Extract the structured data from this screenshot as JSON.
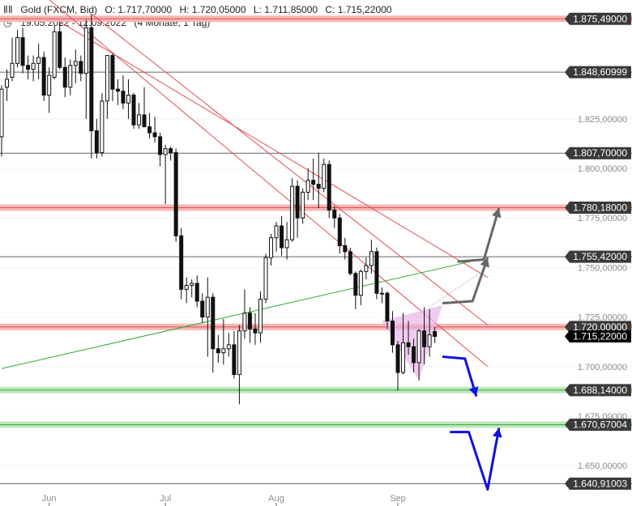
{
  "header": {
    "instrument": "Gold (FXCM, Bid)",
    "open": "O: 1.717,70000",
    "high": "H: 1.720,05000",
    "low": "L: 1.711,85000",
    "close": "C: 1.715,22000",
    "range": "19.05.2022 - 12.09.2022",
    "period": "(4 Monate, 1 Tag)"
  },
  "chart_data": {
    "type": "candlestick",
    "ylim": [
      1637,
      1885
    ],
    "y_ticks": [
      {
        "value": 1650,
        "label": "1.650,00000"
      },
      {
        "value": 1675,
        "label": "1.675,00000"
      },
      {
        "value": 1700,
        "label": "1.700,00000"
      },
      {
        "value": 1725,
        "label": "1.725,00000"
      },
      {
        "value": 1750,
        "label": "1.750,00000"
      },
      {
        "value": 1775,
        "label": "1.775,00000"
      },
      {
        "value": 1800,
        "label": "1.800,00000"
      },
      {
        "value": 1825,
        "label": "1.825,00000"
      }
    ],
    "x_labels": [
      {
        "date": "2022-06-01",
        "label": "Jun"
      },
      {
        "date": "2022-07-01",
        "label": "Jul"
      },
      {
        "date": "2022-08-01",
        "label": "Aug"
      },
      {
        "date": "2022-09-01",
        "label": "Sep"
      }
    ],
    "candles": [
      {
        "date": "2022-05-19",
        "o": 1816.0,
        "h": 1842.0,
        "l": 1806.0,
        "c": 1840.0
      },
      {
        "date": "2022-05-20",
        "o": 1841.0,
        "h": 1850.0,
        "l": 1834.0,
        "c": 1845.0
      },
      {
        "date": "2022-05-23",
        "o": 1846.0,
        "h": 1866.0,
        "l": 1844.0,
        "c": 1853.0
      },
      {
        "date": "2022-05-24",
        "o": 1853.0,
        "h": 1870.0,
        "l": 1851.0,
        "c": 1866.0
      },
      {
        "date": "2022-05-25",
        "o": 1866.0,
        "h": 1871.0,
        "l": 1848.0,
        "c": 1852.0
      },
      {
        "date": "2022-05-26",
        "o": 1852.0,
        "h": 1857.0,
        "l": 1845.0,
        "c": 1850.0
      },
      {
        "date": "2022-05-27",
        "o": 1850.0,
        "h": 1857.0,
        "l": 1844.0,
        "c": 1853.0
      },
      {
        "date": "2022-05-30",
        "o": 1853.0,
        "h": 1863.0,
        "l": 1845.0,
        "c": 1856.0
      },
      {
        "date": "2022-05-31",
        "o": 1856.0,
        "h": 1859.0,
        "l": 1834.0,
        "c": 1837.0
      },
      {
        "date": "2022-06-01",
        "o": 1837.0,
        "h": 1851.0,
        "l": 1828.0,
        "c": 1847.0
      },
      {
        "date": "2022-06-02",
        "o": 1846.0,
        "h": 1872.0,
        "l": 1845.0,
        "c": 1869.0
      },
      {
        "date": "2022-06-03",
        "o": 1869.0,
        "h": 1874.0,
        "l": 1850.0,
        "c": 1851.0
      },
      {
        "date": "2022-06-06",
        "o": 1851.0,
        "h": 1856.0,
        "l": 1836.0,
        "c": 1841.0
      },
      {
        "date": "2022-06-07",
        "o": 1841.0,
        "h": 1855.0,
        "l": 1837.0,
        "c": 1852.0
      },
      {
        "date": "2022-06-08",
        "o": 1852.0,
        "h": 1860.0,
        "l": 1843.0,
        "c": 1854.0
      },
      {
        "date": "2022-06-09",
        "o": 1854.0,
        "h": 1857.0,
        "l": 1844.0,
        "c": 1848.0
      },
      {
        "date": "2022-06-10",
        "o": 1848.0,
        "h": 1875.0,
        "l": 1825.0,
        "c": 1871.0
      },
      {
        "date": "2022-06-13",
        "o": 1871.0,
        "h": 1878.0,
        "l": 1805.0,
        "c": 1819.0
      },
      {
        "date": "2022-06-14",
        "o": 1819.0,
        "h": 1825.0,
        "l": 1805.0,
        "c": 1808.0
      },
      {
        "date": "2022-06-15",
        "o": 1808.0,
        "h": 1838.0,
        "l": 1806.0,
        "c": 1834.0
      },
      {
        "date": "2022-06-16",
        "o": 1834.0,
        "h": 1857.0,
        "l": 1825.0,
        "c": 1857.0
      },
      {
        "date": "2022-06-17",
        "o": 1857.0,
        "h": 1858.0,
        "l": 1834.0,
        "c": 1840.0
      },
      {
        "date": "2022-06-20",
        "o": 1840.0,
        "h": 1845.0,
        "l": 1832.0,
        "c": 1839.0
      },
      {
        "date": "2022-06-21",
        "o": 1839.0,
        "h": 1847.0,
        "l": 1830.0,
        "c": 1833.0
      },
      {
        "date": "2022-06-22",
        "o": 1833.0,
        "h": 1845.0,
        "l": 1825.0,
        "c": 1837.0
      },
      {
        "date": "2022-06-23",
        "o": 1837.0,
        "h": 1838.0,
        "l": 1820.0,
        "c": 1822.0
      },
      {
        "date": "2022-06-24",
        "o": 1822.0,
        "h": 1833.0,
        "l": 1820.0,
        "c": 1827.0
      },
      {
        "date": "2022-06-27",
        "o": 1827.0,
        "h": 1841.0,
        "l": 1821.0,
        "c": 1821.0
      },
      {
        "date": "2022-06-28",
        "o": 1821.0,
        "h": 1828.0,
        "l": 1815.0,
        "c": 1818.0
      },
      {
        "date": "2022-06-29",
        "o": 1818.0,
        "h": 1826.0,
        "l": 1813.0,
        "c": 1816.0
      },
      {
        "date": "2022-06-30",
        "o": 1816.0,
        "h": 1818.0,
        "l": 1801.0,
        "c": 1807.0
      },
      {
        "date": "2022-07-01",
        "o": 1807.0,
        "h": 1812.0,
        "l": 1782.0,
        "c": 1810.0
      },
      {
        "date": "2022-07-04",
        "o": 1810.0,
        "h": 1811.0,
        "l": 1804.0,
        "c": 1808.0
      },
      {
        "date": "2022-07-05",
        "o": 1808.0,
        "h": 1810.0,
        "l": 1763.0,
        "c": 1766.0
      },
      {
        "date": "2022-07-06",
        "o": 1766.0,
        "h": 1770.0,
        "l": 1734.0,
        "c": 1739.0
      },
      {
        "date": "2022-07-07",
        "o": 1739.0,
        "h": 1745.0,
        "l": 1732.0,
        "c": 1741.0
      },
      {
        "date": "2022-07-08",
        "o": 1741.0,
        "h": 1744.0,
        "l": 1735.0,
        "c": 1742.0
      },
      {
        "date": "2022-07-11",
        "o": 1742.0,
        "h": 1746.0,
        "l": 1730.0,
        "c": 1733.0
      },
      {
        "date": "2022-07-12",
        "o": 1733.0,
        "h": 1737.0,
        "l": 1722.0,
        "c": 1725.0
      },
      {
        "date": "2022-07-13",
        "o": 1725.0,
        "h": 1745.0,
        "l": 1705.0,
        "c": 1735.0
      },
      {
        "date": "2022-07-14",
        "o": 1735.0,
        "h": 1737.0,
        "l": 1697.0,
        "c": 1709.0
      },
      {
        "date": "2022-07-15",
        "o": 1709.0,
        "h": 1716.0,
        "l": 1702.0,
        "c": 1707.0
      },
      {
        "date": "2022-07-18",
        "o": 1707.0,
        "h": 1724.0,
        "l": 1701.0,
        "c": 1709.0
      },
      {
        "date": "2022-07-19",
        "o": 1709.0,
        "h": 1717.0,
        "l": 1705.0,
        "c": 1711.0
      },
      {
        "date": "2022-07-20",
        "o": 1711.0,
        "h": 1718.0,
        "l": 1694.0,
        "c": 1696.0
      },
      {
        "date": "2022-07-21",
        "o": 1696.0,
        "h": 1721.0,
        "l": 1681.0,
        "c": 1718.0
      },
      {
        "date": "2022-07-22",
        "o": 1718.0,
        "h": 1739.0,
        "l": 1714.0,
        "c": 1727.0
      },
      {
        "date": "2022-07-25",
        "o": 1727.0,
        "h": 1730.0,
        "l": 1712.0,
        "c": 1719.0
      },
      {
        "date": "2022-07-26",
        "o": 1719.0,
        "h": 1727.0,
        "l": 1711.0,
        "c": 1717.0
      },
      {
        "date": "2022-07-27",
        "o": 1717.0,
        "h": 1738.0,
        "l": 1712.0,
        "c": 1734.0
      },
      {
        "date": "2022-07-28",
        "o": 1734.0,
        "h": 1757.0,
        "l": 1732.0,
        "c": 1755.0
      },
      {
        "date": "2022-07-29",
        "o": 1755.0,
        "h": 1767.0,
        "l": 1751.0,
        "c": 1765.0
      },
      {
        "date": "2022-08-01",
        "o": 1765.0,
        "h": 1773.0,
        "l": 1758.0,
        "c": 1771.0
      },
      {
        "date": "2022-08-02",
        "o": 1771.0,
        "h": 1776.0,
        "l": 1756.0,
        "c": 1760.0
      },
      {
        "date": "2022-08-03",
        "o": 1760.0,
        "h": 1773.0,
        "l": 1754.0,
        "c": 1764.0
      },
      {
        "date": "2022-08-04",
        "o": 1764.0,
        "h": 1795.0,
        "l": 1763.0,
        "c": 1791.0
      },
      {
        "date": "2022-08-05",
        "o": 1791.0,
        "h": 1794.0,
        "l": 1765.0,
        "c": 1775.0
      },
      {
        "date": "2022-08-08",
        "o": 1775.0,
        "h": 1790.0,
        "l": 1772.0,
        "c": 1788.0
      },
      {
        "date": "2022-08-09",
        "o": 1788.0,
        "h": 1800.0,
        "l": 1784.0,
        "c": 1794.0
      },
      {
        "date": "2022-08-10",
        "o": 1794.0,
        "h": 1805.0,
        "l": 1784.0,
        "c": 1792.0
      },
      {
        "date": "2022-08-11",
        "o": 1792.0,
        "h": 1808.0,
        "l": 1780.0,
        "c": 1790.0
      },
      {
        "date": "2022-08-12",
        "o": 1790.0,
        "h": 1805.0,
        "l": 1788.0,
        "c": 1802.0
      },
      {
        "date": "2022-08-15",
        "o": 1802.0,
        "h": 1804.0,
        "l": 1775.0,
        "c": 1779.0
      },
      {
        "date": "2022-08-16",
        "o": 1779.0,
        "h": 1781.0,
        "l": 1770.0,
        "c": 1775.0
      },
      {
        "date": "2022-08-17",
        "o": 1775.0,
        "h": 1777.0,
        "l": 1757.0,
        "c": 1761.0
      },
      {
        "date": "2022-08-18",
        "o": 1761.0,
        "h": 1765.0,
        "l": 1754.0,
        "c": 1758.0
      },
      {
        "date": "2022-08-19",
        "o": 1758.0,
        "h": 1760.0,
        "l": 1746.0,
        "c": 1747.0
      },
      {
        "date": "2022-08-22",
        "o": 1747.0,
        "h": 1748.0,
        "l": 1729.0,
        "c": 1736.0
      },
      {
        "date": "2022-08-23",
        "o": 1736.0,
        "h": 1749.0,
        "l": 1731.0,
        "c": 1748.0
      },
      {
        "date": "2022-08-24",
        "o": 1748.0,
        "h": 1755.0,
        "l": 1744.0,
        "c": 1751.0
      },
      {
        "date": "2022-08-25",
        "o": 1751.0,
        "h": 1764.0,
        "l": 1747.0,
        "c": 1758.0
      },
      {
        "date": "2022-08-26",
        "o": 1758.0,
        "h": 1760.0,
        "l": 1734.0,
        "c": 1737.0
      },
      {
        "date": "2022-08-29",
        "o": 1737.0,
        "h": 1740.0,
        "l": 1732.0,
        "c": 1737.0
      },
      {
        "date": "2022-08-30",
        "o": 1737.0,
        "h": 1738.0,
        "l": 1719.0,
        "c": 1723.0
      },
      {
        "date": "2022-08-31",
        "o": 1723.0,
        "h": 1728.0,
        "l": 1707.0,
        "c": 1711.0
      },
      {
        "date": "2022-09-01",
        "o": 1711.0,
        "h": 1713.0,
        "l": 1688.0,
        "c": 1697.0
      },
      {
        "date": "2022-09-02",
        "o": 1697.0,
        "h": 1727.0,
        "l": 1696.0,
        "c": 1712.0
      },
      {
        "date": "2022-09-05",
        "o": 1712.0,
        "h": 1723.0,
        "l": 1706.0,
        "c": 1710.0
      },
      {
        "date": "2022-09-06",
        "o": 1710.0,
        "h": 1714.0,
        "l": 1697.0,
        "c": 1702.0
      },
      {
        "date": "2022-09-07",
        "o": 1702.0,
        "h": 1719.0,
        "l": 1693.0,
        "c": 1718.0
      },
      {
        "date": "2022-09-08",
        "o": 1718.0,
        "h": 1730.0,
        "l": 1701.0,
        "c": 1710.0
      },
      {
        "date": "2022-09-09",
        "o": 1710.0,
        "h": 1729.0,
        "l": 1705.0,
        "c": 1716.0
      },
      {
        "date": "2022-09-12",
        "o": 1717.7,
        "h": 1720.05,
        "l": 1711.85,
        "c": 1715.22
      }
    ],
    "levels": [
      {
        "value": 1875.49,
        "label": "1.875,49000",
        "zone": true
      },
      {
        "value": 1848.60999,
        "label": "1.848,60999",
        "zone": false
      },
      {
        "value": 1807.7,
        "label": "1.807,70000",
        "zone": false
      },
      {
        "value": 1780.18,
        "label": "1.780,18000",
        "zone": true
      },
      {
        "value": 1755.42,
        "label": "1.755,42000",
        "zone": false
      },
      {
        "value": 1720.0,
        "label": "1.720,00000",
        "zone": true
      },
      {
        "value": 1688.14,
        "label": "1.688,14000",
        "zone": true,
        "color": "#33aa33"
      },
      {
        "value": 1670.67004,
        "label": "1.670,67004",
        "zone": true,
        "color": "#33aa33"
      },
      {
        "value": 1640.91003,
        "label": "1.640,91003",
        "zone": false
      }
    ],
    "current": {
      "value": 1715.22,
      "label": "1.715,22000"
    },
    "trendlines": [
      {
        "color": "#e05050",
        "points": [
          [
            "2022-05-11",
            1918
          ],
          [
            "2022-09-26",
            1700
          ]
        ]
      },
      {
        "color": "#e05050",
        "points": [
          [
            "2022-06-13",
            1878
          ],
          [
            "2022-09-26",
            1721
          ]
        ]
      },
      {
        "color": "#e05050",
        "points": [
          [
            "2022-06-03",
            1874
          ],
          [
            "2022-09-26",
            1745
          ]
        ]
      },
      {
        "color": "#33aa33",
        "points": [
          [
            "2022-05-19",
            1699
          ],
          [
            "2022-09-26",
            1755
          ]
        ]
      }
    ],
    "colors": {
      "zone_red": "#f7b6b6",
      "zone_red_line": "#e05050",
      "zone_green": "#bfe8bf",
      "trend_red": "#e05050",
      "trend_green": "#33aa33",
      "label_bg": "#3a3a3a",
      "current_bg": "#000000",
      "arrow_grey": "#666666",
      "arrow_blue": "#1010e0",
      "triangle": "#e8b6e8"
    }
  }
}
